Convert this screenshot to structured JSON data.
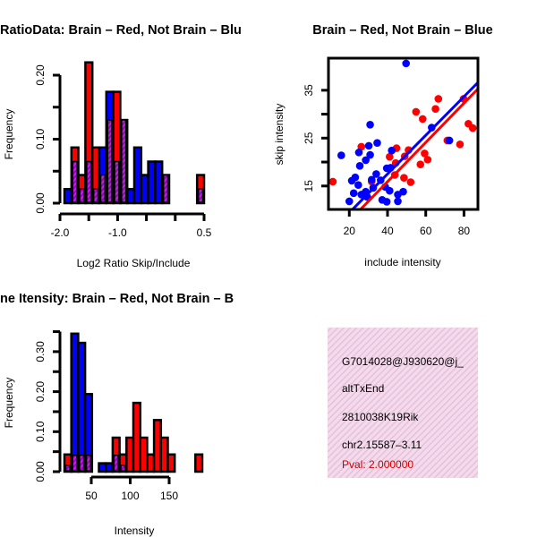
{
  "colors": {
    "brain": "#ff0000",
    "not_brain": "#0000ff",
    "overlap": "#9900cc",
    "info_bg": "#f6d6ef",
    "pval": "#cc0000"
  },
  "chart_data": [
    {
      "type": "bar",
      "subtype": "overlaid-histogram",
      "title": "RatioData: Brain – Red, Not Brain – Blu",
      "xlabel": "Log2 Ratio Skip/Include",
      "ylabel": "Frequency",
      "xlim": [
        -2.0,
        0.5
      ],
      "ylim": [
        0,
        0.22
      ],
      "xticks": [
        -2.0,
        -1.5,
        -1.0,
        -0.5,
        0.0,
        0.5
      ],
      "xtick_labels": [
        "-2.0",
        "-1.0",
        "0.5"
      ],
      "xtick_label_values": [
        -2.0,
        -1.0,
        0.5
      ],
      "yticks": [
        0,
        0.05,
        0.1,
        0.15,
        0.2
      ],
      "ytick_labels": [
        "0.00",
        "0.10",
        "0.20"
      ],
      "ytick_label_values": [
        0,
        0.1,
        0.2
      ],
      "bin_start": -1.92,
      "bin_width": 0.121,
      "series": [
        {
          "name": "Brain",
          "color": "red",
          "values": [
            0,
            0.087,
            0.044,
            0.22,
            0.087,
            0.044,
            0.13,
            0.174,
            0.13,
            0,
            0,
            0,
            0,
            0,
            0.044,
            0,
            0,
            0,
            0,
            0.044
          ]
        },
        {
          "name": "Not Brain",
          "color": "blue",
          "values": [
            0.022,
            0.065,
            0.022,
            0.065,
            0.022,
            0.087,
            0.174,
            0.065,
            0.13,
            0.022,
            0.087,
            0.044,
            0.065,
            0.065,
            0.044,
            0,
            0,
            0,
            0,
            0.022
          ]
        }
      ]
    },
    {
      "type": "scatter",
      "title": "Brain – Red, Not Brain – Blue",
      "xlabel": "include intensity",
      "ylabel": "skip intensity",
      "xlim": [
        9.1,
        87.3
      ],
      "ylim": [
        10.1,
        41.7
      ],
      "xticks": [
        20,
        40,
        60,
        80
      ],
      "xtick_labels": [
        "20",
        "40",
        "60",
        "80"
      ],
      "yticks": [
        15,
        20,
        25,
        30,
        35
      ],
      "ytick_labels": [
        "15",
        "25",
        "35"
      ],
      "ytick_label_values": [
        15,
        25,
        35
      ],
      "series": [
        {
          "name": "Brain",
          "color": "red",
          "points": [
            [
              11.4,
              15.9
            ],
            [
              26.3,
              23.2
            ],
            [
              31.7,
              15.9
            ],
            [
              41.1,
              21.1
            ],
            [
              44.7,
              22.9
            ],
            [
              44.3,
              19.8
            ],
            [
              43.8,
              17.3
            ],
            [
              48.6,
              16.7
            ],
            [
              49.0,
              21.2
            ],
            [
              51.0,
              22.5
            ],
            [
              52.1,
              15.8
            ],
            [
              54.9,
              30.5
            ],
            [
              57.2,
              19.5
            ],
            [
              58.4,
              29.0
            ],
            [
              59.4,
              21.8
            ],
            [
              61.0,
              20.5
            ],
            [
              65.1,
              31.1
            ],
            [
              66.6,
              33.2
            ],
            [
              71.3,
              24.5
            ],
            [
              77.9,
              23.7
            ],
            [
              79.8,
              33.2
            ],
            [
              82.3,
              28.0
            ],
            [
              84.6,
              27.1
            ]
          ],
          "fit": {
            "intercept": -0.5,
            "slope": 0.41
          }
        },
        {
          "name": "Not Brain",
          "color": "blue",
          "points": [
            [
              49.7,
              40.6
            ],
            [
              15.8,
              21.4
            ],
            [
              30.9,
              27.8
            ],
            [
              25.0,
              22.0
            ],
            [
              30.9,
              21.5
            ],
            [
              30.2,
              23.4
            ],
            [
              34.6,
              24.0
            ],
            [
              42.2,
              22.4
            ],
            [
              28.6,
              20.4
            ],
            [
              25.5,
              19.2
            ],
            [
              63.1,
              27.2
            ],
            [
              72.4,
              24.5
            ],
            [
              20.0,
              11.8
            ],
            [
              21.3,
              16.1
            ],
            [
              23.1,
              16.8
            ],
            [
              24.7,
              15.2
            ],
            [
              22.3,
              13.5
            ],
            [
              26.3,
              13.2
            ],
            [
              28.6,
              13.8
            ],
            [
              31.7,
              16.3
            ],
            [
              34.1,
              17.5
            ],
            [
              36.4,
              16.2
            ],
            [
              39.6,
              18.7
            ],
            [
              41.6,
              18.8
            ],
            [
              38.8,
              14.8
            ],
            [
              37.2,
              12.1
            ],
            [
              39.6,
              11.7
            ],
            [
              41.1,
              14.0
            ],
            [
              45.4,
              11.8
            ],
            [
              45.4,
              13.2
            ],
            [
              48.2,
              13.8
            ],
            [
              29.4,
              12.7
            ],
            [
              32.5,
              14.6
            ]
          ],
          "fit": {
            "intercept": 1.35,
            "slope": 0.404
          }
        }
      ]
    },
    {
      "type": "bar",
      "subtype": "overlaid-histogram",
      "title": "ne Itensity: Brain – Red, Not Brain – B",
      "xlabel": "Intensity",
      "ylabel": "Frequency",
      "xlim": [
        50,
        150
      ],
      "ylim": [
        0,
        0.35
      ],
      "xticks": [
        50,
        100,
        150
      ],
      "xtick_labels": [
        "50",
        "100",
        "150"
      ],
      "yticks": [
        0,
        0.05,
        0.1,
        0.15,
        0.2,
        0.25,
        0.3,
        0.35
      ],
      "ytick_labels": [
        "0.00",
        "0.10",
        "0.20",
        "0.30"
      ],
      "ytick_label_values": [
        0,
        0.1,
        0.2,
        0.3
      ],
      "bin_start": 16,
      "bin_width": 8.75,
      "series": [
        {
          "name": "Brain",
          "color": "red",
          "values": [
            0.043,
            0.041,
            0.041,
            0.041,
            0,
            0,
            0,
            0.085,
            0.043,
            0.085,
            0.172,
            0.085,
            0.043,
            0.129,
            0.085,
            0.043,
            0,
            0,
            0,
            0.043
          ]
        },
        {
          "name": "Not Brain",
          "color": "blue",
          "values": [
            0.016,
            0.345,
            0.322,
            0.194,
            0,
            0.021,
            0.021,
            0.041,
            0.016,
            0,
            0,
            0,
            0,
            0,
            0,
            0,
            0,
            0,
            0,
            0
          ]
        }
      ]
    }
  ],
  "info": {
    "event_id": "G7014028@J930620@j_",
    "event_type": "altTxEnd",
    "gene": "2810038K19Rik",
    "location": "chr2.15587–3.11",
    "pval": "Pval: 2.000000"
  }
}
